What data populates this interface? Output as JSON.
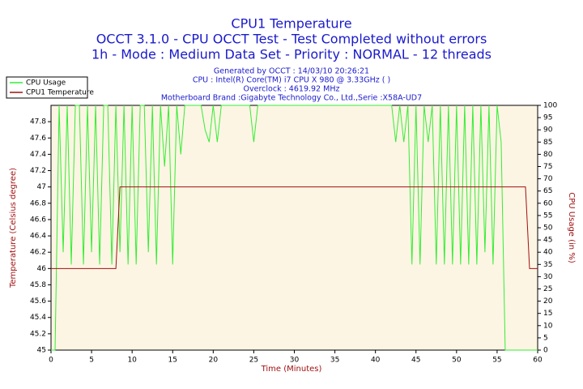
{
  "chart_data": {
    "type": "line",
    "title": "CPU1 Temperature",
    "subtitles": [
      "OCCT 3.1.0 - CPU OCCT Test - Test Completed without errors",
      "1h - Mode : Medium Data Set - Priority : NORMAL - 12 threads"
    ],
    "info": [
      "Generated by OCCT : 14/03/10 20:26:21",
      "CPU : Intel(R) Core(TM) i7 CPU X 980 @ 3.33GHz (  )",
      "Overclock : 4619.92 MHz",
      "Motherboard Brand :Gigabyte Technology Co., Ltd.,Serie :X58A-UD7"
    ],
    "x_label": "Time (Minutes)",
    "y_label": "Temperature (Celsius degree)",
    "y2_label": "CPU Usage (in %)",
    "xlim": [
      0,
      60
    ],
    "xticks": [
      0,
      5,
      10,
      15,
      20,
      25,
      30,
      35,
      40,
      45,
      50,
      55,
      60
    ],
    "ylim": [
      45,
      48
    ],
    "yticks": [
      45,
      45.2,
      45.4,
      45.6,
      45.8,
      46,
      46.2,
      46.4,
      46.6,
      46.8,
      47,
      47.2,
      47.4,
      47.6,
      47.8
    ],
    "y2lim": [
      0,
      100
    ],
    "y2ticks": [
      0,
      5,
      10,
      15,
      20,
      25,
      30,
      35,
      40,
      45,
      50,
      55,
      60,
      65,
      70,
      75,
      80,
      85,
      90,
      95,
      100
    ],
    "legend": "top-left",
    "x": [
      0,
      0.5,
      1,
      1.5,
      2,
      2.5,
      3,
      3.5,
      4,
      4.5,
      5,
      5.5,
      6,
      6.5,
      7,
      7.5,
      8,
      8.5,
      9,
      9.5,
      10,
      10.5,
      11,
      11.5,
      12,
      12.5,
      13,
      13.5,
      14,
      14.5,
      15,
      15.5,
      16,
      16.5,
      17,
      17.5,
      18,
      18.5,
      19,
      19.5,
      20,
      20.5,
      21,
      21.5,
      22,
      22.5,
      23,
      23.5,
      24,
      24.5,
      25,
      25.5,
      26,
      26.5,
      27,
      27.5,
      28,
      28.5,
      29,
      29.5,
      30,
      30.5,
      31,
      31.5,
      32,
      32.5,
      33,
      33.5,
      34,
      34.5,
      35,
      35.5,
      36,
      36.5,
      37,
      37.5,
      38,
      38.5,
      39,
      39.5,
      40,
      40.5,
      41,
      41.5,
      42,
      42.5,
      43,
      43.5,
      44,
      44.5,
      45,
      45.5,
      46,
      46.5,
      47,
      47.5,
      48,
      48.5,
      49,
      49.5,
      50,
      50.5,
      51,
      51.5,
      52,
      52.5,
      53,
      53.5,
      54,
      54.5,
      55,
      55.5,
      56,
      56.5,
      57,
      57.5,
      58,
      58.5,
      59,
      59.5,
      60
    ],
    "series": [
      {
        "name": "CPU Usage",
        "color": "#33ee33",
        "axis": "y2",
        "values": [
          0,
          0,
          100,
          40,
          100,
          35,
          100,
          100,
          35,
          100,
          40,
          100,
          35,
          100,
          100,
          35,
          100,
          40,
          100,
          35,
          100,
          35,
          100,
          100,
          40,
          100,
          35,
          100,
          75,
          100,
          35,
          100,
          80,
          100,
          100,
          100,
          100,
          100,
          90,
          85,
          100,
          85,
          100,
          100,
          100,
          100,
          100,
          100,
          100,
          100,
          85,
          100,
          100,
          100,
          100,
          100,
          100,
          100,
          100,
          100,
          100,
          100,
          100,
          100,
          100,
          100,
          100,
          100,
          100,
          100,
          100,
          100,
          100,
          100,
          100,
          100,
          100,
          100,
          100,
          100,
          100,
          100,
          100,
          100,
          100,
          85,
          100,
          85,
          100,
          35,
          100,
          35,
          100,
          85,
          100,
          35,
          100,
          35,
          100,
          35,
          100,
          35,
          100,
          35,
          100,
          35,
          100,
          40,
          100,
          35,
          100,
          85,
          0,
          0,
          0,
          0,
          0,
          0,
          0,
          0,
          0
        ]
      },
      {
        "name": "CPU1 Temperature",
        "color": "#a01010",
        "values": [
          46,
          46,
          46,
          46,
          46,
          46,
          46,
          46,
          46,
          46,
          46,
          46,
          46,
          46,
          46,
          46,
          46,
          47,
          47,
          47,
          47,
          47,
          47,
          47,
          47,
          47,
          47,
          47,
          47,
          47,
          47,
          47,
          47,
          47,
          47,
          47,
          47,
          47,
          47,
          47,
          47,
          47,
          47,
          47,
          47,
          47,
          47,
          47,
          47,
          47,
          47,
          47,
          47,
          47,
          47,
          47,
          47,
          47,
          47,
          47,
          47,
          47,
          47,
          47,
          47,
          47,
          47,
          47,
          47,
          47,
          47,
          47,
          47,
          47,
          47,
          47,
          47,
          47,
          47,
          47,
          47,
          47,
          47,
          47,
          47,
          47,
          47,
          47,
          47,
          47,
          47,
          47,
          47,
          47,
          47,
          47,
          47,
          47,
          47,
          47,
          47,
          47,
          47,
          47,
          47,
          47,
          47,
          47,
          47,
          47,
          47,
          47,
          47,
          47,
          47,
          47,
          47,
          47,
          46,
          46,
          46
        ]
      }
    ]
  }
}
